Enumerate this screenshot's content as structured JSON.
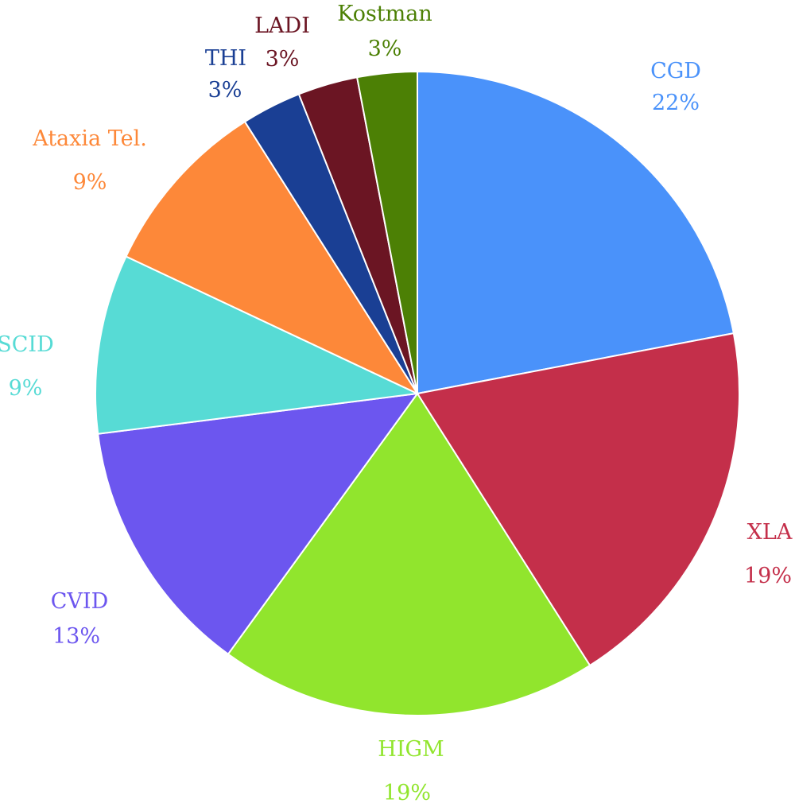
{
  "chart_data": {
    "type": "pie",
    "title": "",
    "start": "12 o'clock",
    "direction": "clockwise",
    "slices": [
      {
        "label": "CGD",
        "percent_label": "22%",
        "value": 22,
        "color": "#4a92fa"
      },
      {
        "label": "XLA",
        "percent_label": "19%",
        "value": 19,
        "color": "#c42f4a"
      },
      {
        "label": "HIGM",
        "percent_label": "19%",
        "value": 19,
        "color": "#91e52d"
      },
      {
        "label": "CVID",
        "percent_label": "13%",
        "value": 13,
        "color": "#6c56ef"
      },
      {
        "label": "SCID",
        "percent_label": "9%",
        "value": 9,
        "color": "#57dbd5"
      },
      {
        "label": "Ataxia Tel.",
        "percent_label": "9%",
        "value": 9,
        "color": "#fd8839"
      },
      {
        "label": "THI",
        "percent_label": "3%",
        "value": 3,
        "color": "#1a3f94"
      },
      {
        "label": "LADI",
        "percent_label": "3%",
        "value": 3,
        "color": "#6b1523"
      },
      {
        "label": "Kostman",
        "percent_label": "3%",
        "value": 3,
        "color": "#4c8005"
      }
    ]
  }
}
